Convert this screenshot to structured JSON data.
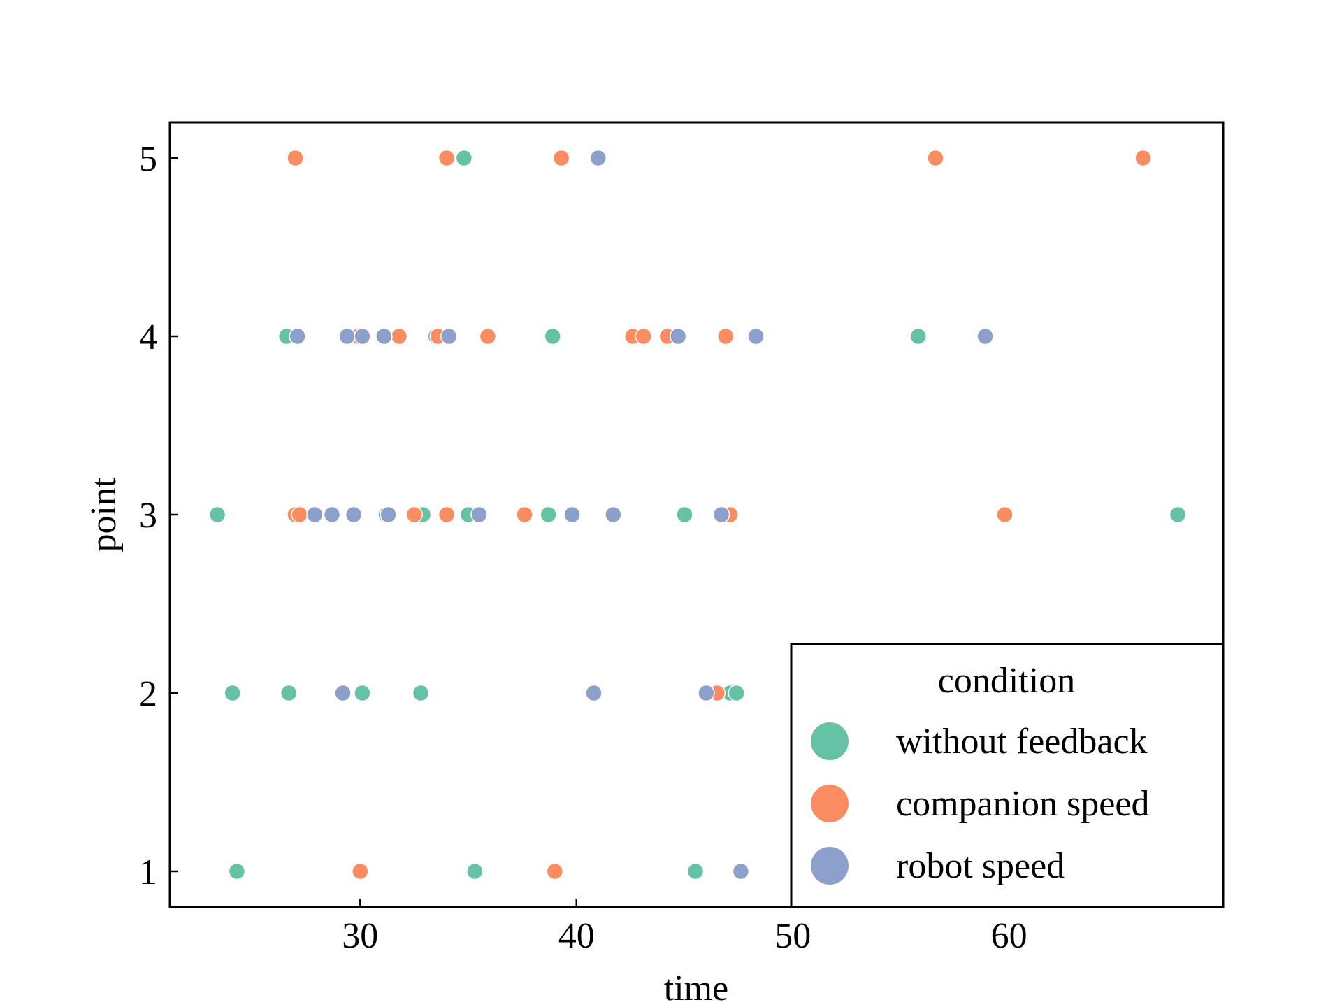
{
  "chart_data": {
    "type": "scatter",
    "title": "",
    "xlabel": "time",
    "ylabel": "point",
    "xlim": [
      21.2,
      69.9
    ],
    "ylim": [
      0.8,
      5.2
    ],
    "xticks": [
      30,
      40,
      50,
      60
    ],
    "yticks": [
      1,
      2,
      3,
      4,
      5
    ],
    "grid": false,
    "legend": {
      "title": "condition",
      "placement": "lower-right"
    },
    "series": [
      {
        "name": "without feedback",
        "color": "#66c2a5",
        "x": [
          24.3,
          35.3,
          45.5,
          24.1,
          26.7,
          30.1,
          32.8,
          47.1,
          47.4,
          23.4,
          31.2,
          32.9,
          35.0,
          38.7,
          45.0,
          67.8,
          26.6,
          33.5,
          38.9,
          55.8,
          34.8
        ],
        "y": [
          1,
          1,
          1,
          2,
          2,
          2,
          2,
          2,
          2,
          3,
          3,
          3,
          3,
          3,
          3,
          3,
          4,
          4,
          4,
          4,
          5
        ]
      },
      {
        "name": "companion speed",
        "color": "#fc8d62",
        "x": [
          30.0,
          39.0,
          46.5,
          27.0,
          27.2,
          32.5,
          34.0,
          37.6,
          47.1,
          59.8,
          29.9,
          31.8,
          33.6,
          35.9,
          42.6,
          43.1,
          44.2,
          46.9,
          27.0,
          34.0,
          39.3,
          56.6,
          66.2
        ],
        "y": [
          1,
          1,
          2,
          3,
          3,
          3,
          3,
          3,
          3,
          3,
          4,
          4,
          4,
          4,
          4,
          4,
          4,
          4,
          5,
          5,
          5,
          5,
          5
        ]
      },
      {
        "name": "robot speed",
        "color": "#8da0cb",
        "x": [
          47.6,
          29.2,
          40.8,
          46.0,
          27.9,
          28.7,
          29.7,
          31.3,
          35.5,
          39.8,
          41.7,
          46.7,
          27.1,
          29.4,
          30.1,
          31.1,
          34.1,
          44.7,
          48.3,
          58.9,
          41.0
        ],
        "y": [
          1,
          2,
          2,
          2,
          3,
          3,
          3,
          3,
          3,
          3,
          3,
          3,
          4,
          4,
          4,
          4,
          4,
          4,
          4,
          4,
          5
        ]
      }
    ]
  }
}
